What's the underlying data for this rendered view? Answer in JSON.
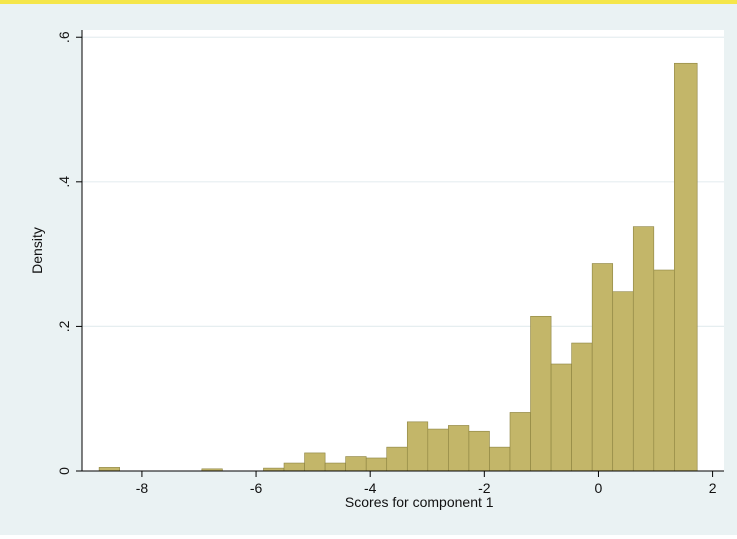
{
  "chart_data": {
    "type": "bar",
    "title": "",
    "xlabel": "Scores for component 1",
    "ylabel": "Density",
    "xlim": [
      -9.05,
      2.2
    ],
    "ylim": [
      0,
      0.61
    ],
    "x_ticks": [
      -8,
      -6,
      -4,
      -2,
      0,
      2
    ],
    "x_tick_labels": [
      "-8",
      "-6",
      "-4",
      "-2",
      "0",
      "2"
    ],
    "y_ticks": [
      0,
      0.2,
      0.4,
      0.6
    ],
    "y_tick_labels": [
      "0",
      ".2",
      ".4",
      ".6"
    ],
    "grid": true,
    "legend": "none",
    "bar_color": "#c3b669",
    "bar_edge_color": "#8b8240",
    "plot_background": "#ffffff",
    "frame_background": "#eaf2f3",
    "bins": [
      {
        "x0": -8.75,
        "x1": -8.39,
        "value": 0.005
      },
      {
        "x0": -8.39,
        "x1": -8.03,
        "value": 0.0
      },
      {
        "x0": -8.03,
        "x1": -7.67,
        "value": 0.0
      },
      {
        "x0": -7.67,
        "x1": -7.31,
        "value": 0.0
      },
      {
        "x0": -7.31,
        "x1": -6.95,
        "value": 0.0
      },
      {
        "x0": -6.95,
        "x1": -6.59,
        "value": 0.003
      },
      {
        "x0": -6.59,
        "x1": -6.23,
        "value": 0.0
      },
      {
        "x0": -6.23,
        "x1": -5.87,
        "value": 0.0
      },
      {
        "x0": -5.87,
        "x1": -5.51,
        "value": 0.004
      },
      {
        "x0": -5.51,
        "x1": -5.15,
        "value": 0.011
      },
      {
        "x0": -5.15,
        "x1": -4.79,
        "value": 0.025
      },
      {
        "x0": -4.79,
        "x1": -4.43,
        "value": 0.011
      },
      {
        "x0": -4.43,
        "x1": -4.07,
        "value": 0.02
      },
      {
        "x0": -4.07,
        "x1": -3.71,
        "value": 0.018
      },
      {
        "x0": -3.71,
        "x1": -3.35,
        "value": 0.033
      },
      {
        "x0": -3.35,
        "x1": -2.99,
        "value": 0.068
      },
      {
        "x0": -2.99,
        "x1": -2.63,
        "value": 0.058
      },
      {
        "x0": -2.63,
        "x1": -2.27,
        "value": 0.063
      },
      {
        "x0": -2.27,
        "x1": -1.91,
        "value": 0.055
      },
      {
        "x0": -1.91,
        "x1": -1.55,
        "value": 0.033
      },
      {
        "x0": -1.55,
        "x1": -1.19,
        "value": 0.081
      },
      {
        "x0": -1.19,
        "x1": -0.83,
        "value": 0.214
      },
      {
        "x0": -0.83,
        "x1": -0.47,
        "value": 0.148
      },
      {
        "x0": -0.47,
        "x1": -0.11,
        "value": 0.177
      },
      {
        "x0": -0.11,
        "x1": 0.25,
        "value": 0.287
      },
      {
        "x0": 0.25,
        "x1": 0.61,
        "value": 0.248
      },
      {
        "x0": 0.61,
        "x1": 0.97,
        "value": 0.338
      },
      {
        "x0": 0.97,
        "x1": 1.33,
        "value": 0.278
      },
      {
        "x0": 1.33,
        "x1": 1.73,
        "value": 0.564
      }
    ]
  }
}
